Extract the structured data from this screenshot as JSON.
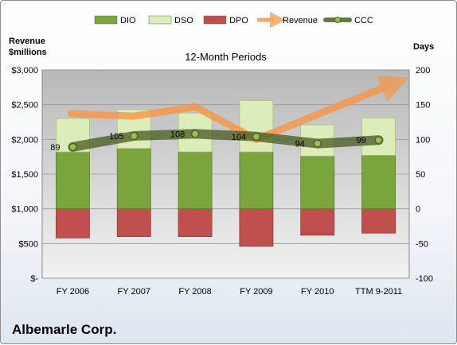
{
  "chart_data": {
    "type": "bar",
    "title": "12-Month Periods",
    "footer": "Albemarle Corp.",
    "left_axis_title": [
      "Revenue",
      "$millions"
    ],
    "right_axis_title": "Days",
    "categories": [
      "FY 2006",
      "FY 2007",
      "FY 2008",
      "FY 2009",
      "FY 2010",
      "TTM 9-2011"
    ],
    "left_ticks": [
      "$-",
      "$500",
      "$1,000",
      "$1,500",
      "$2,000",
      "$2,500",
      "$3,000"
    ],
    "left_ylim": [
      0,
      3000
    ],
    "right_ticks": [
      "-100",
      "-50",
      "0",
      "50",
      "100",
      "150",
      "200"
    ],
    "right_ylim": [
      -100,
      200
    ],
    "legend": [
      "DIO",
      "DSO",
      "DPO",
      "Revenue",
      "CCC"
    ],
    "legend_position": "top",
    "series": [
      {
        "name": "DIO",
        "axis": "right",
        "values": [
          82,
          87,
          82,
          82,
          76,
          77
        ],
        "color": "#7aa53c"
      },
      {
        "name": "DSO",
        "axis": "right",
        "values": [
          48,
          56,
          56,
          74,
          45,
          54
        ],
        "color": "#dcedb9"
      },
      {
        "name": "DPO",
        "axis": "right",
        "values": [
          -42,
          -40,
          -40,
          -54,
          -38,
          -35
        ],
        "color": "#c0504d"
      },
      {
        "name": "Revenue",
        "axis": "left",
        "values": [
          2370,
          2335,
          2470,
          2000,
          2360,
          2780
        ],
        "color": "#f79646"
      },
      {
        "name": "CCC",
        "axis": "right",
        "values": [
          89,
          105,
          108,
          104,
          94,
          99
        ],
        "color": "#4f6228"
      }
    ],
    "data_labels": [
      "89",
      "105",
      "108",
      "104",
      "94",
      "99"
    ]
  }
}
